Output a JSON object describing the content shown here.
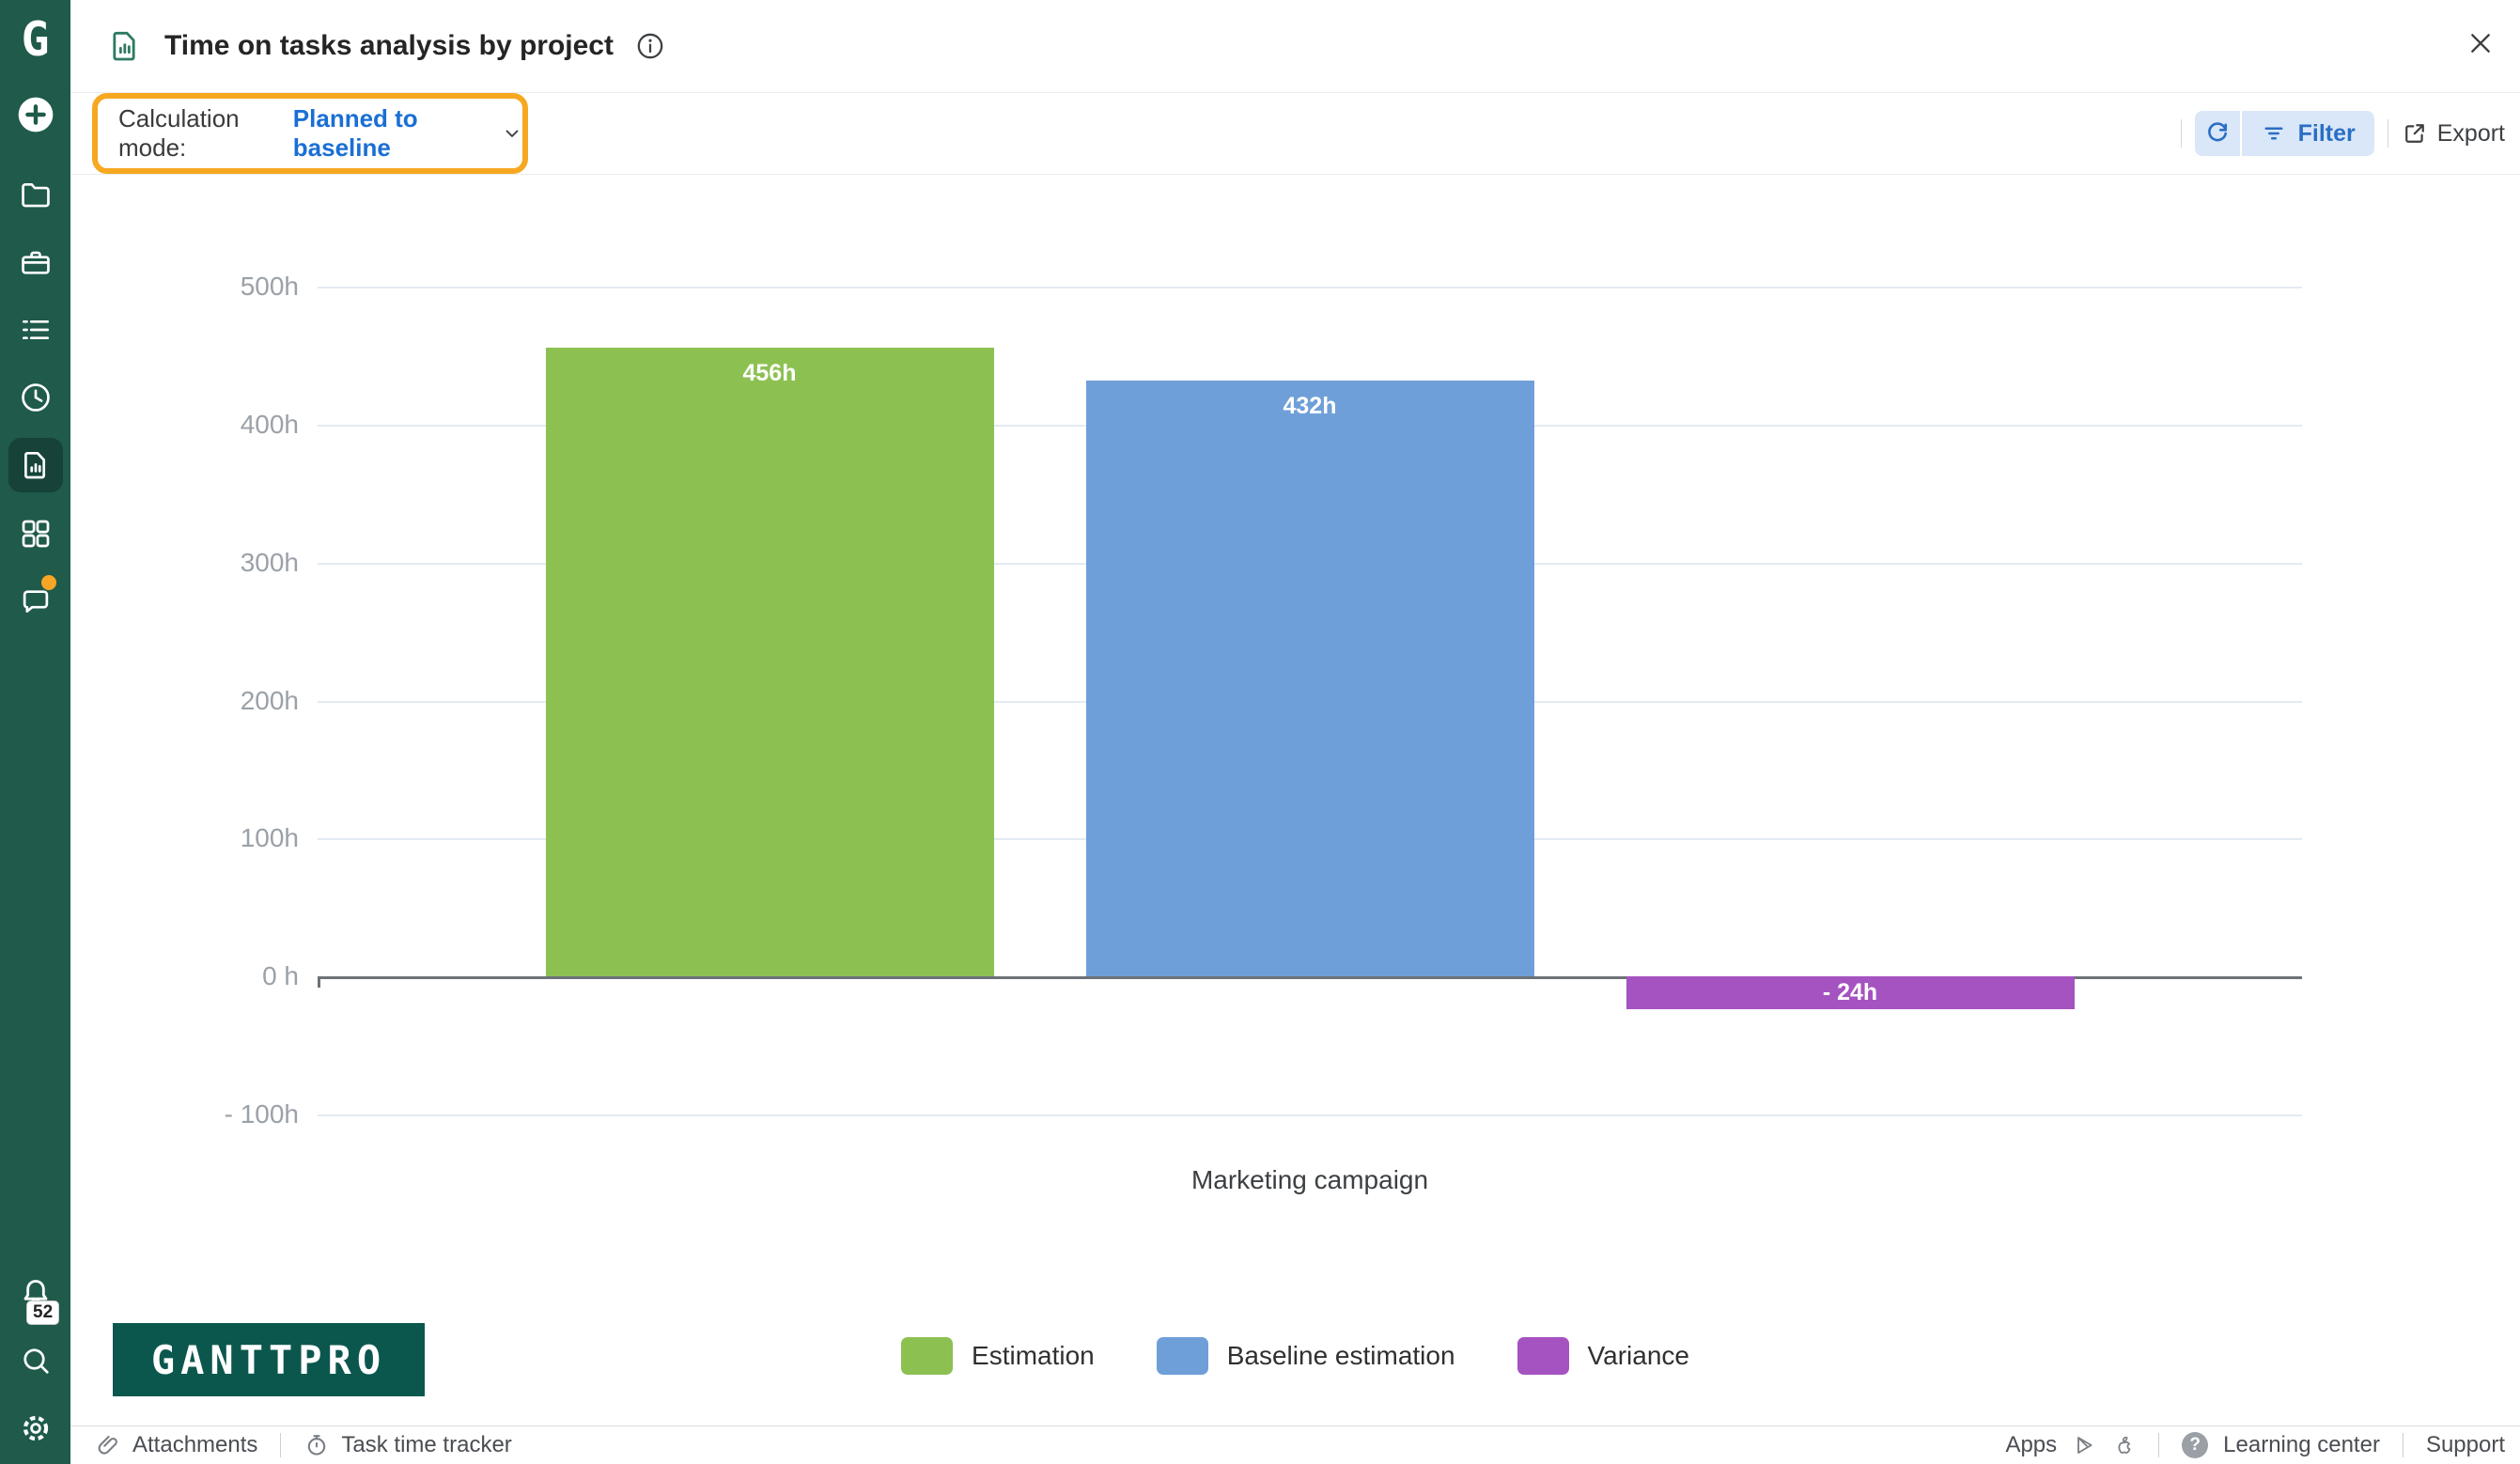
{
  "colors": {
    "sidebar_green": "#1f5a4b",
    "sidebar_active_bg": "#16423a",
    "brand_teal": "#0b574e",
    "highlight_orange": "#f6a821",
    "link_blue": "#1a6fd4",
    "chip_bg": "#d9e7f8",
    "chip_blue": "#2a6fc4",
    "notification_orange": "#f6a623"
  },
  "sidebar": {
    "logo_letter": "G",
    "notification_badge": "52"
  },
  "header": {
    "title": "Time on tasks analysis by project"
  },
  "toolbar": {
    "calculation_mode_label": "Calculation mode:",
    "calculation_mode_value": "Planned to baseline",
    "filter_label": "Filter",
    "export_label": "Export"
  },
  "chart_data": {
    "type": "bar",
    "categories": [
      "Marketing campaign"
    ],
    "series": [
      {
        "name": "Estimation",
        "value": 456,
        "label": "456h",
        "color": "#8cc152"
      },
      {
        "name": "Baseline estimation",
        "value": 432,
        "label": "432h",
        "color": "#6f9fd8"
      },
      {
        "name": "Variance",
        "value": -24,
        "label": "- 24h",
        "color": "#a553c0"
      }
    ],
    "xlabel": "",
    "ylabel": "",
    "ylim": [
      -100,
      500
    ],
    "yticks": [
      {
        "value": 500,
        "label": "500h"
      },
      {
        "value": 400,
        "label": "400h"
      },
      {
        "value": 300,
        "label": "300h"
      },
      {
        "value": 200,
        "label": "200h"
      },
      {
        "value": 100,
        "label": "100h"
      },
      {
        "value": 0,
        "label": "0 h"
      },
      {
        "value": -100,
        "label": "- 100h"
      }
    ],
    "grid": true,
    "legend_position": "bottom"
  },
  "logo_text": "GANTTPRO",
  "footer": {
    "attachments": "Attachments",
    "task_time_tracker": "Task time tracker",
    "apps": "Apps",
    "learning_center": "Learning center",
    "support": "Support",
    "help_glyph": "?"
  }
}
